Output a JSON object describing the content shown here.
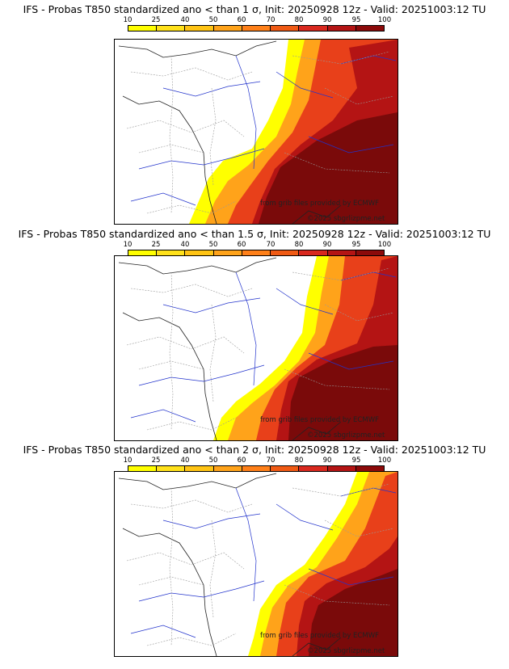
{
  "colorbar": {
    "ticks": [
      "10",
      "25",
      "40",
      "50",
      "60",
      "70",
      "80",
      "90",
      "95",
      "100"
    ],
    "colors": [
      "#ffff00",
      "#ffe11a",
      "#ffc414",
      "#ffa31a",
      "#ff8019",
      "#f05a14",
      "#d9281e",
      "#b41414",
      "#8c0a0a"
    ]
  },
  "panels": [
    {
      "title": "IFS - Probas T850  standardized ano < than 1 σ, Init: 20250928 12z - Valid: 20251003:12 TU",
      "credit_line1": "from grib files provided by ECMWF",
      "credit_line2": "©2025 sbgrlizpme.net"
    },
    {
      "title": "IFS - Probas T850  standardized ano < than 1.5 σ, Init: 20250928 12z - Valid: 20251003:12 TU",
      "credit_line1": "from grib files provided by ECMWF",
      "credit_line2": "©2025 sbgrlizpme.net"
    },
    {
      "title": "IFS - Probas T850  standardized ano < than 2 σ, Init: 20250928 12z - Valid: 20251003:12 TU",
      "credit_line1": "from grib files provided by ECMWF",
      "credit_line2": "©2025 sbgrlizpme.net"
    }
  ]
}
